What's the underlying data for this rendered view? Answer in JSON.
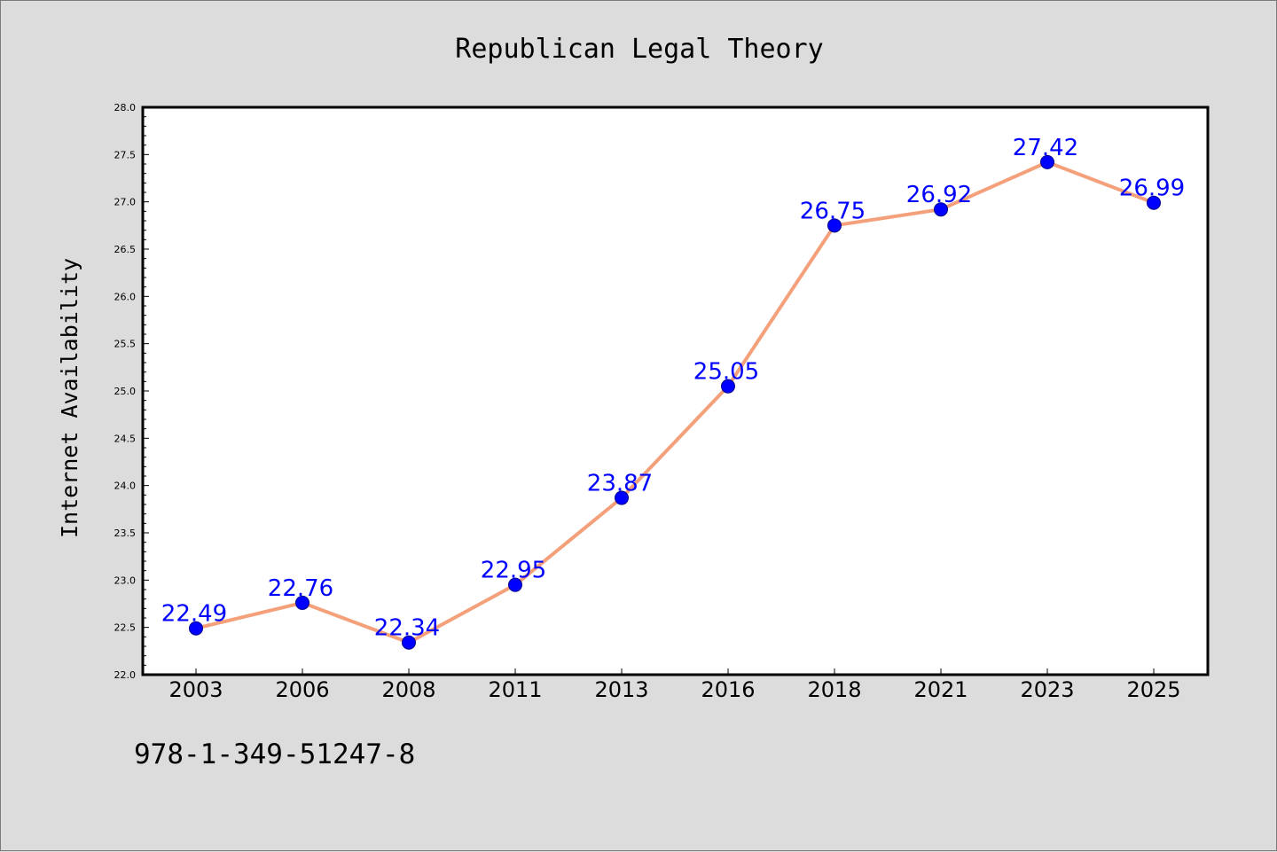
{
  "chart_data": {
    "type": "line",
    "title": "Republican Legal Theory",
    "xlabel": "",
    "ylabel": "Internet Availability",
    "categories": [
      "2003",
      "2006",
      "2008",
      "2011",
      "2013",
      "2016",
      "2018",
      "2021",
      "2023",
      "2025"
    ],
    "series": [
      {
        "values": [
          22.49,
          22.76,
          22.34,
          22.95,
          23.87,
          25.05,
          26.75,
          26.92,
          27.42,
          26.99
        ],
        "labels": [
          "22.49",
          "22.76",
          "22.34",
          "22.95",
          "23.87",
          "25.05",
          "26.75",
          "26.92",
          "27.42",
          "26.99"
        ],
        "line_color": "#f4a07a",
        "marker_color": "#0000ff"
      }
    ],
    "ylim": [
      22.0,
      28.0
    ],
    "yticks": [
      "22.0",
      "22.5",
      "23.0",
      "23.5",
      "24.0",
      "24.5",
      "25.0",
      "25.5",
      "26.0",
      "26.5",
      "27.0",
      "27.5",
      "28.0"
    ],
    "grid": false,
    "legend": "none",
    "label_color": "#0000ff",
    "background": "#dcdcdc",
    "plot_background": "#ffffff"
  },
  "footer": {
    "isbn": "978-1-349-51247-8"
  }
}
